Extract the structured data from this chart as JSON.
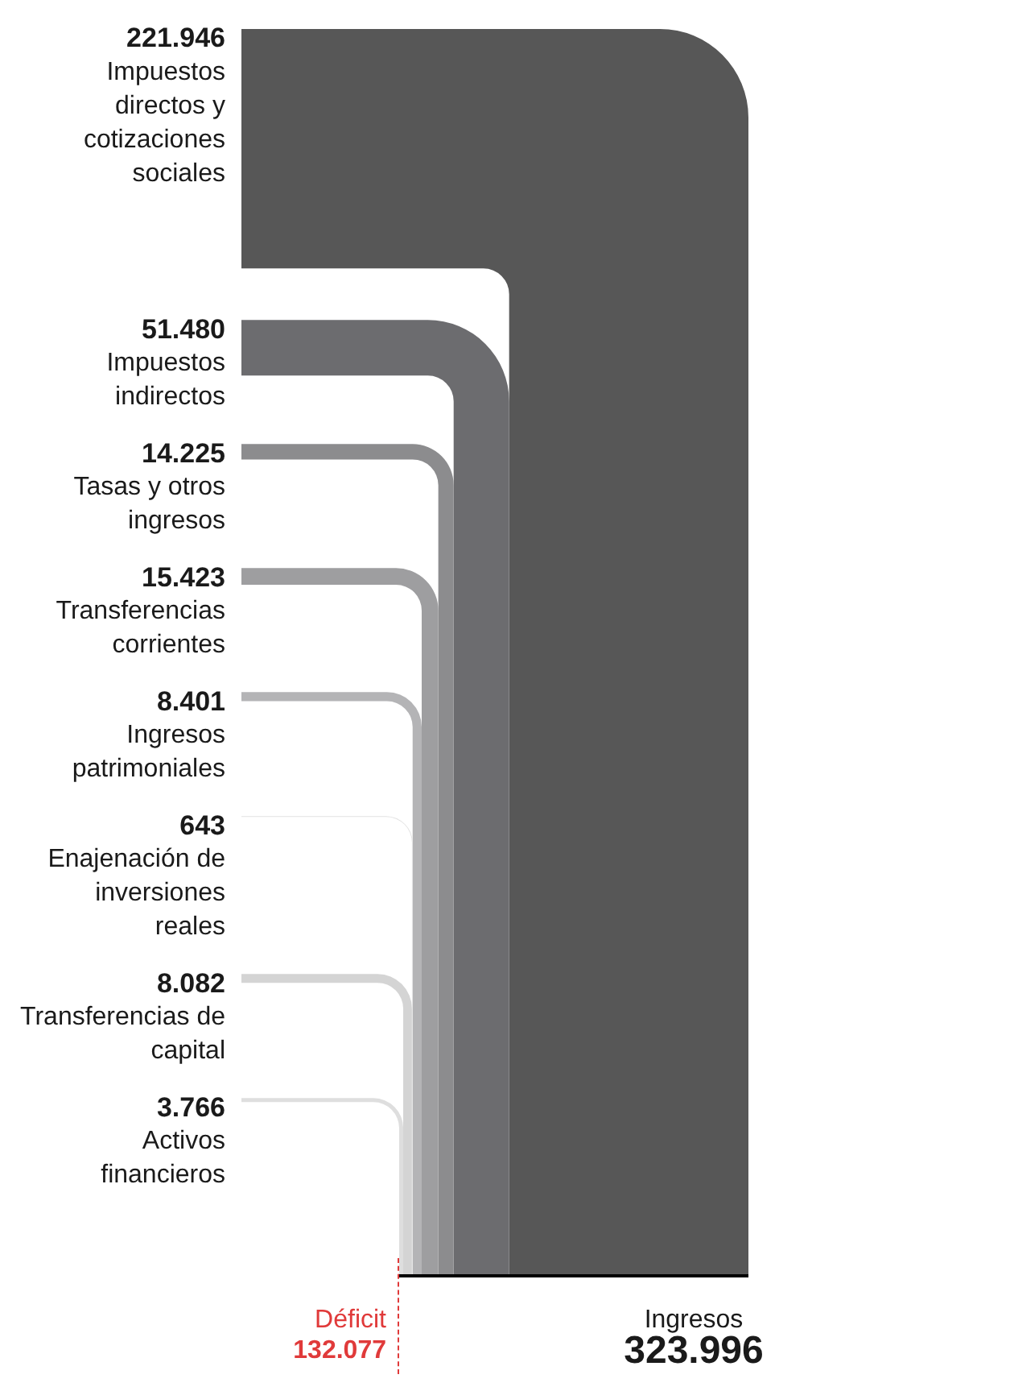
{
  "chart_data": {
    "type": "other",
    "categories": [
      "Impuestos directos y cotizaciones sociales",
      "Impuestos indirectos",
      "Tasas y otros ingresos",
      "Transferencias corrientes",
      "Ingresos patrimoniales",
      "Enajenación de inversiones reales",
      "Transferencias de capital",
      "Activos financieros"
    ],
    "values": [
      221946,
      51480,
      14225,
      15423,
      8401,
      643,
      8082,
      3766
    ],
    "value_labels": [
      "221.946",
      "51.480",
      "14.225",
      "15.423",
      "8.401",
      "643",
      "8.082",
      "3.766"
    ],
    "colors": [
      "#575757",
      "#6c6c6f",
      "#8c8c8e",
      "#9e9ea0",
      "#b4b4b6",
      "#e2e2e2",
      "#d4d4d4",
      "#dedede"
    ],
    "annotations": [
      "Déficit\n132.077",
      "Ingresos\n323.996"
    ]
  }
}
